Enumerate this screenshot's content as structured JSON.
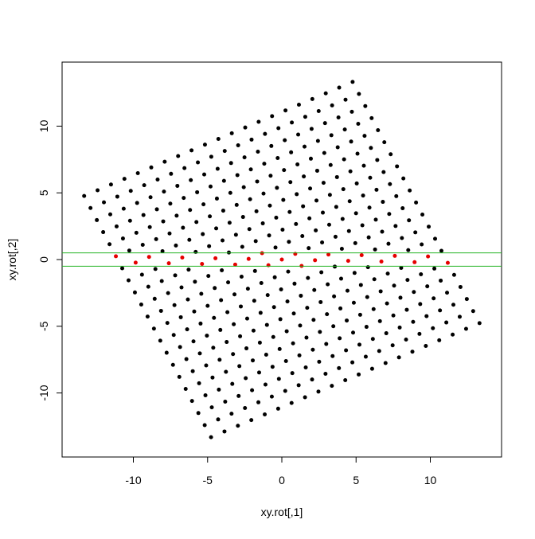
{
  "chart_data": {
    "type": "scatter",
    "title": "",
    "xlabel": "xy.rot[,1]",
    "ylabel": "xy.rot[,2]",
    "xlim": [
      -14.8,
      14.8
    ],
    "ylim": [
      -14.8,
      14.8
    ],
    "x_ticks": [
      -10,
      -5,
      0,
      5,
      10
    ],
    "y_ticks": [
      -10,
      -5,
      0,
      5,
      10
    ],
    "x_tick_labels": [
      "-10",
      "-5",
      "0",
      "5",
      "10"
    ],
    "y_tick_labels": [
      "-10",
      "-5",
      "0",
      "5",
      "10"
    ],
    "grid": false,
    "legend": "none",
    "grid_points": {
      "description_of_generation": "",
      "lattice_x_range": [
        -10,
        10
      ],
      "lattice_y_range": [
        -10,
        10
      ],
      "lattice_step": 1,
      "rotation_degrees": 25.3
    },
    "horizontal_lines": [
      {
        "y": 0.5,
        "color": "#22b222"
      },
      {
        "y": -0.5,
        "color": "#22b222"
      }
    ],
    "colors": {
      "points": "#000000",
      "highlighted": "#e60000",
      "lines": "#22b222",
      "axes": "#000000"
    }
  }
}
